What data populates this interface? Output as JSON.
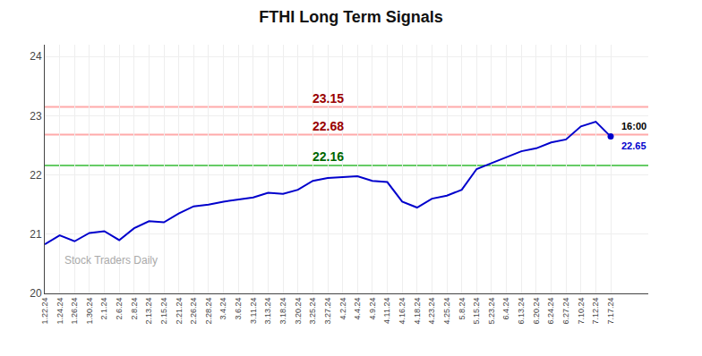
{
  "chart_data": {
    "type": "line",
    "title": "FTHI Long Term Signals",
    "categories": [
      "1.22.24",
      "1.24.24",
      "1.26.24",
      "1.30.24",
      "2.1.24",
      "2.6.24",
      "2.8.24",
      "2.13.24",
      "2.15.24",
      "2.21.24",
      "2.26.24",
      "2.28.24",
      "3.4.24",
      "3.6.24",
      "3.11.24",
      "3.13.24",
      "3.18.24",
      "3.20.24",
      "3.25.24",
      "3.27.24",
      "4.2.24",
      "4.4.24",
      "4.9.24",
      "4.11.24",
      "4.16.24",
      "4.18.24",
      "4.23.24",
      "4.25.24",
      "5.8.24",
      "5.15.24",
      "5.23.24",
      "6.4.24",
      "6.13.24",
      "6.20.24",
      "6.24.24",
      "6.27.24",
      "7.10.24",
      "7.12.24",
      "7.17.24"
    ],
    "values": [
      20.83,
      20.98,
      20.88,
      21.02,
      21.05,
      20.9,
      21.1,
      21.22,
      21.2,
      21.35,
      21.47,
      21.5,
      21.55,
      21.58,
      21.62,
      21.7,
      21.68,
      21.75,
      21.9,
      21.95,
      21.97,
      21.98,
      21.9,
      21.88,
      21.55,
      21.45,
      21.6,
      21.65,
      21.75,
      22.1,
      22.2,
      22.3,
      22.4,
      22.45,
      22.55,
      22.6,
      22.82,
      22.9,
      22.65
    ],
    "color": "#0000cc",
    "ylim": [
      20,
      24.2
    ],
    "yticks": [
      20,
      21,
      22,
      23,
      24
    ],
    "grid": true,
    "hlines": [
      {
        "value": 23.15,
        "label": "23.15",
        "color": "#ffaaaa",
        "label_color": "#990000"
      },
      {
        "value": 22.68,
        "label": "22.68",
        "color": "#ffaaaa",
        "label_color": "#990000"
      },
      {
        "value": 22.16,
        "label": "22.16",
        "color": "#66cc66",
        "label_color": "#006600"
      }
    ],
    "annotations": [
      {
        "text": "16:00",
        "color": "#000000"
      },
      {
        "text": "22.65",
        "color": "#0000cc"
      }
    ],
    "watermark": {
      "text": "Stock Traders Daily",
      "color": "#aaaaaa"
    }
  }
}
